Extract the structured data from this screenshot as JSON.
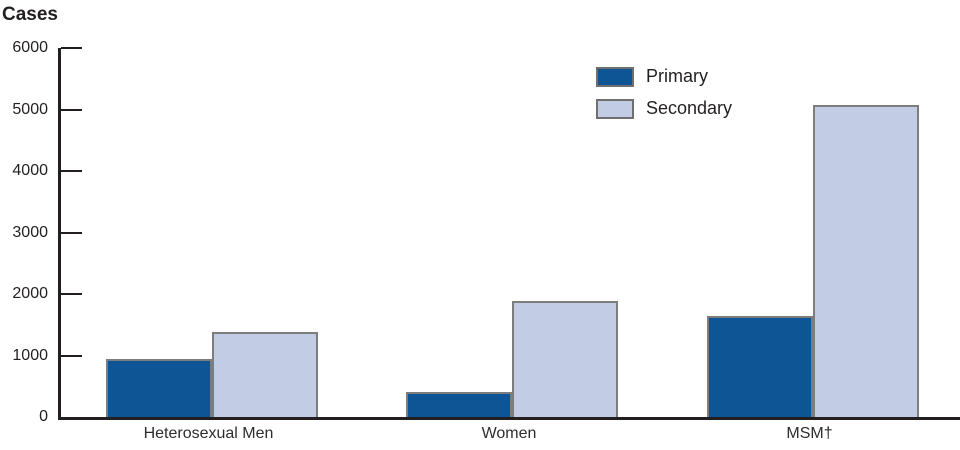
{
  "title": "Cases",
  "colors": {
    "primary": "#0d5595",
    "secondary": "#c2cce4",
    "bar_border": "#7d7d7d",
    "axis": "#231f20",
    "text": "#231f20"
  },
  "legend": {
    "items": [
      {
        "label": "Primary",
        "color_key": "primary"
      },
      {
        "label": "Secondary",
        "color_key": "secondary"
      }
    ]
  },
  "chart_data": {
    "type": "bar",
    "title": "Cases",
    "ylabel": "Cases",
    "xlabel": "",
    "categories": [
      "Heterosexual Men",
      "Women",
      "MSM†"
    ],
    "series": [
      {
        "name": "Primary",
        "values": [
          950,
          400,
          1650
        ]
      },
      {
        "name": "Secondary",
        "values": [
          1380,
          1880,
          5080
        ]
      }
    ],
    "ylim": [
      0,
      6000
    ],
    "yticks": [
      0,
      1000,
      2000,
      3000,
      4000,
      5000,
      6000
    ],
    "grid": false,
    "legend_position": "top-center-inside"
  }
}
